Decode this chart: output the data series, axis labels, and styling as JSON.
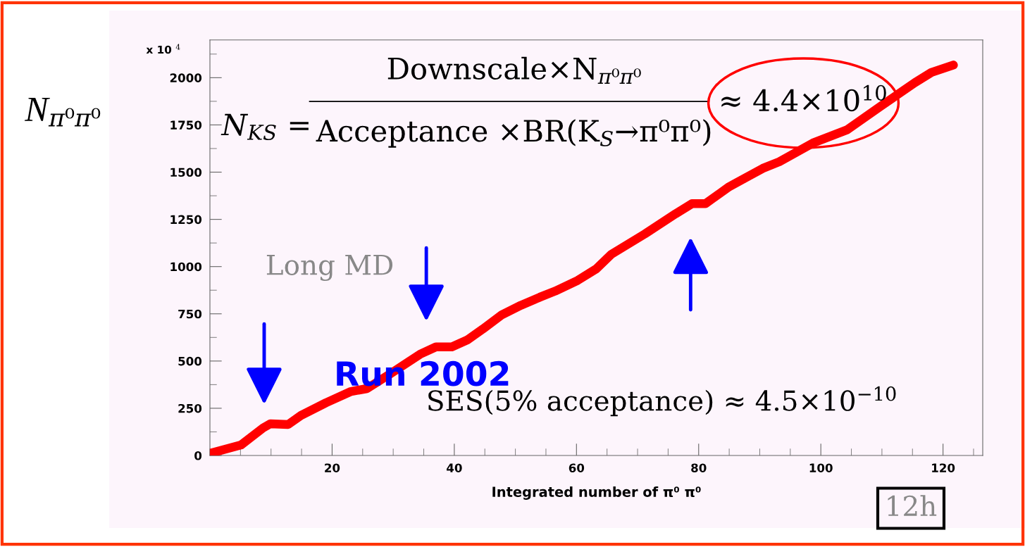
{
  "chart_data": {
    "type": "line",
    "xlabel": "Integrated number of π⁰ π⁰",
    "ylabel": "N$_{π⁰π⁰}$",
    "color": "#ff0000",
    "x": [
      0.2,
      5.1,
      8.7,
      9.9,
      12.8,
      14.9,
      19.0,
      23.1,
      25.7,
      29.3,
      34.4,
      37.0,
      39.6,
      42.1,
      44.7,
      47.8,
      50.9,
      54.0,
      56.5,
      60.2,
      63.2,
      65.7,
      71.2,
      76.2,
      78.9,
      81.1,
      85.0,
      90.5,
      93.2,
      98.7,
      104.3,
      109.8,
      115.4,
      118.1,
      121.7
    ],
    "values": [
      13,
      56,
      146,
      168,
      164,
      212,
      279,
      339,
      354,
      428,
      536,
      575,
      575,
      611,
      670,
      745,
      795,
      838,
      870,
      927,
      987,
      1065,
      1173,
      1279,
      1333,
      1333,
      1423,
      1520,
      1555,
      1654,
      1724,
      1849,
      1974,
      2028,
      2067
    ],
    "xlim": [
      0,
      126.5
    ],
    "ylim": [
      0,
      2200
    ],
    "xticks": [
      20,
      40,
      60,
      80,
      100,
      120
    ],
    "yticks": [
      0,
      250,
      500,
      750,
      1000,
      1250,
      1500,
      1750,
      2000
    ],
    "grid": false,
    "annotations": [
      "x 10 $^{4}$",
      "N$_{KS}$ =",
      "Downscale×N$_{π⁰π⁰}$",
      "Acceptance ×BR(K$_{S}$→π⁰π⁰)",
      "≈ 4.4×10$^{10}$",
      "Long MD",
      "Run 2002",
      "SES(5% acceptance) ≈ 4.5×10$^{−10}$",
      "12h"
    ]
  }
}
